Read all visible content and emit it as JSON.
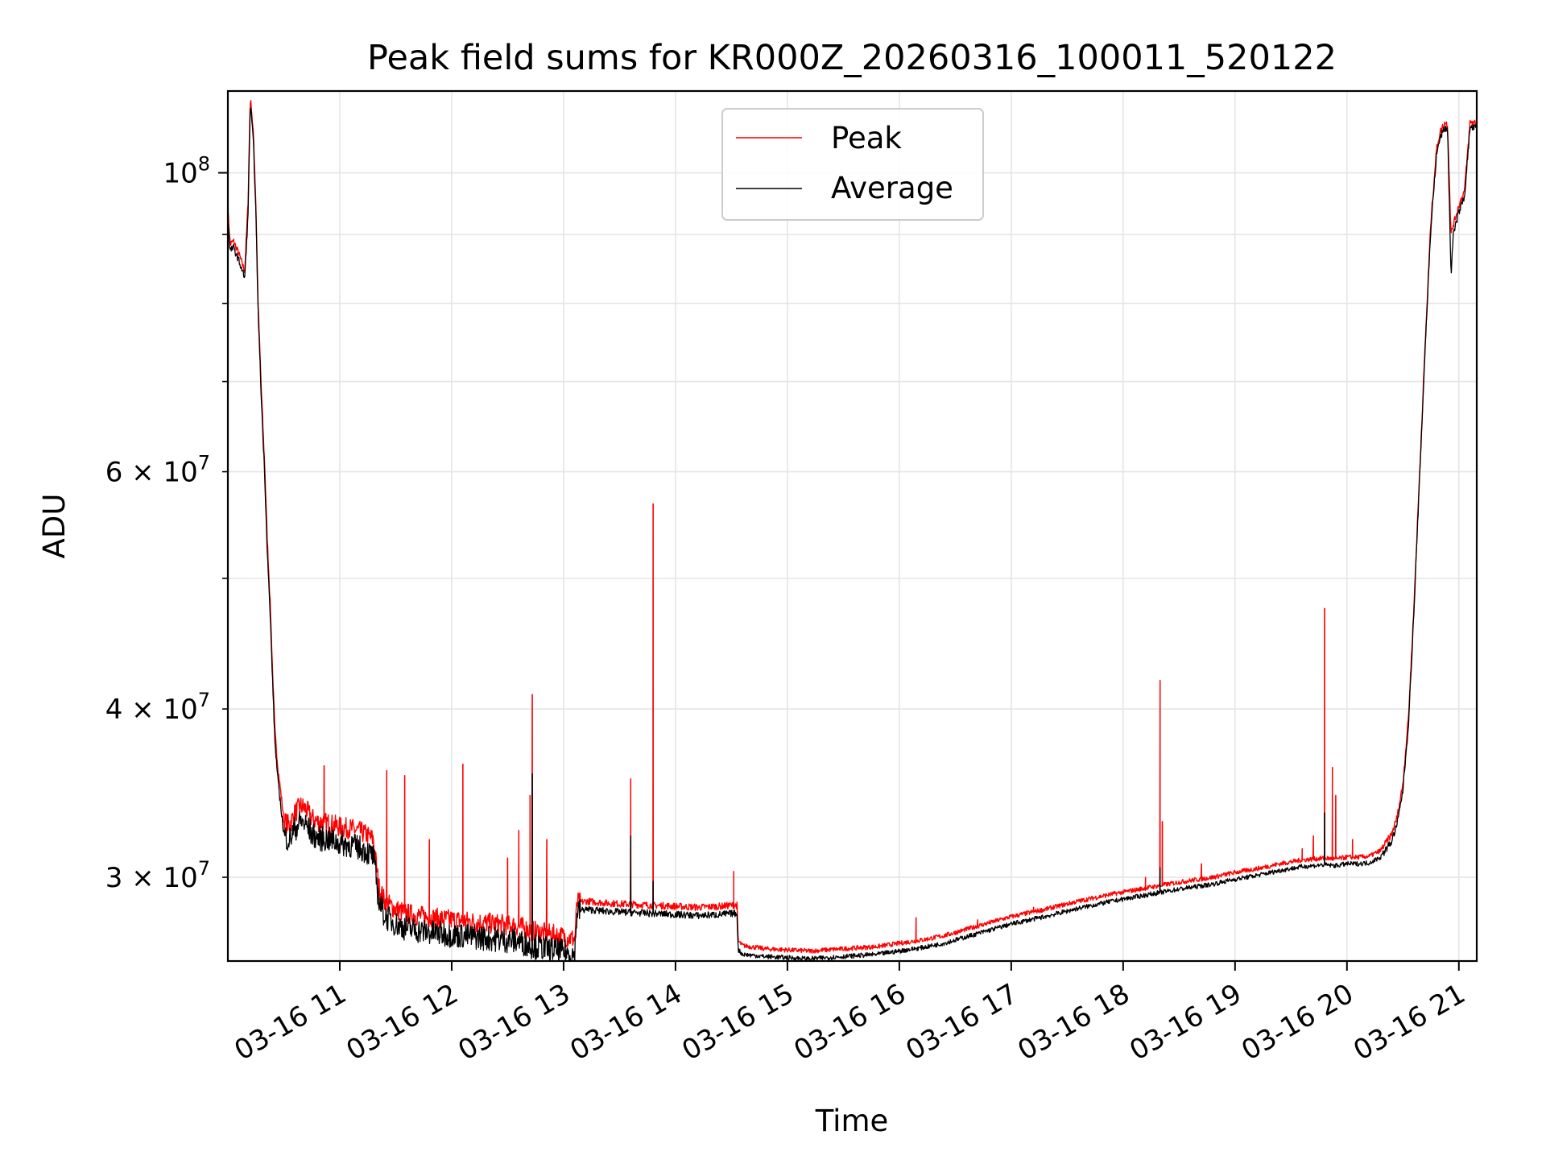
{
  "chart_data": {
    "type": "line",
    "title": "Peak field sums for KR000Z_20260316_100011_520122",
    "xlabel": "Time",
    "ylabel": "ADU",
    "yscale": "log",
    "xlim": [
      10.0,
      21.16
    ],
    "ylim": [
      26000000,
      115000000
    ],
    "grid": true,
    "legend_position": "top-center",
    "x_unit": "hours since 03-16 00:00",
    "x_ticks": [
      {
        "value": 11,
        "label": "03-16 11"
      },
      {
        "value": 12,
        "label": "03-16 12"
      },
      {
        "value": 13,
        "label": "03-16 13"
      },
      {
        "value": 14,
        "label": "03-16 14"
      },
      {
        "value": 15,
        "label": "03-16 15"
      },
      {
        "value": 16,
        "label": "03-16 16"
      },
      {
        "value": 17,
        "label": "03-16 17"
      },
      {
        "value": 18,
        "label": "03-16 18"
      },
      {
        "value": 19,
        "label": "03-16 19"
      },
      {
        "value": 20,
        "label": "03-16 20"
      },
      {
        "value": 21,
        "label": "03-16 21"
      }
    ],
    "y_ticks_major": [
      {
        "value": 100000000,
        "base": "10",
        "exp": "8"
      }
    ],
    "y_ticks_minor": [
      {
        "value": 30000000,
        "coef": "3",
        "base": "10",
        "exp": "7"
      },
      {
        "value": 40000000,
        "coef": "4",
        "base": "10",
        "exp": "7"
      },
      {
        "value": 50000000
      },
      {
        "value": 60000000,
        "coef": "6",
        "base": "10",
        "exp": "7"
      },
      {
        "value": 70000000
      },
      {
        "value": 80000000
      },
      {
        "value": 90000000
      }
    ],
    "series": [
      {
        "name": "Peak",
        "color": "#ff0000",
        "x": [
          10.0,
          10.02,
          10.05,
          10.1,
          10.15,
          10.18,
          10.2,
          10.21,
          10.23,
          10.25,
          10.27,
          10.3,
          10.33,
          10.35,
          10.38,
          10.4,
          10.42,
          10.45,
          10.48,
          10.5,
          10.55,
          10.6,
          10.65,
          10.7,
          10.75,
          10.8,
          10.9,
          11.0,
          11.1,
          11.2,
          11.3,
          11.35,
          11.4,
          11.5,
          11.6,
          11.8,
          12.0,
          12.2,
          12.4,
          12.6,
          12.7,
          12.8,
          12.9,
          13.0,
          13.1,
          13.12,
          13.2,
          13.4,
          13.6,
          13.8,
          14.0,
          14.2,
          14.4,
          14.5,
          14.55,
          14.56,
          14.6,
          14.8,
          15.0,
          15.2,
          15.5,
          15.8,
          16.0,
          16.2,
          16.4,
          16.6,
          16.8,
          17.0,
          17.3,
          17.6,
          17.9,
          18.2,
          18.5,
          18.8,
          19.0,
          19.2,
          19.4,
          19.6,
          19.7,
          19.8,
          19.9,
          20.0,
          20.1,
          20.2,
          20.3,
          20.4,
          20.45,
          20.5,
          20.55,
          20.6,
          20.65,
          20.7,
          20.75,
          20.8,
          20.83,
          20.85,
          20.88,
          20.9,
          20.93,
          20.95,
          21.0,
          21.05,
          21.1,
          21.16
        ],
        "values": [
          94000000,
          88500000,
          89000000,
          87000000,
          84500000,
          95000000,
          113500000,
          112000000,
          106000000,
          95000000,
          80000000,
          68500000,
          60500000,
          54000000,
          47500000,
          42500000,
          38500000,
          36000000,
          34300000,
          33000000,
          32800000,
          33500000,
          33900000,
          33700000,
          33200000,
          33000000,
          32900000,
          32700000,
          32600000,
          32400000,
          32000000,
          29500000,
          28800000,
          28400000,
          28200000,
          28000000,
          27900000,
          27800000,
          27700000,
          27600000,
          27400000,
          27300000,
          27200000,
          27100000,
          27000000,
          28700000,
          28800000,
          28700000,
          28650000,
          28600000,
          28550000,
          28500000,
          28550000,
          28600000,
          28600000,
          26900000,
          26700000,
          26550000,
          26500000,
          26450000,
          26550000,
          26650000,
          26800000,
          26950000,
          27150000,
          27450000,
          27750000,
          28050000,
          28400000,
          28800000,
          29150000,
          29450000,
          29750000,
          30000000,
          30250000,
          30450000,
          30700000,
          30900000,
          30950000,
          31000000,
          30950000,
          31050000,
          31050000,
          31100000,
          31400000,
          32300000,
          33300000,
          35200000,
          39500000,
          48000000,
          60000000,
          75000000,
          92000000,
          104000000,
          107000000,
          108000000,
          109000000,
          108500000,
          90000000,
          91500000,
          94500000,
          97000000,
          109000000,
          109000000
        ],
        "spikes": [
          {
            "x": 10.86,
            "value": 36300000
          },
          {
            "x": 11.42,
            "value": 36000000
          },
          {
            "x": 11.58,
            "value": 35700000
          },
          {
            "x": 11.8,
            "value": 32000000
          },
          {
            "x": 12.1,
            "value": 36400000
          },
          {
            "x": 12.5,
            "value": 31000000
          },
          {
            "x": 12.6,
            "value": 32500000
          },
          {
            "x": 12.7,
            "value": 34500000
          },
          {
            "x": 12.72,
            "value": 41000000
          },
          {
            "x": 12.85,
            "value": 32000000
          },
          {
            "x": 13.6,
            "value": 35500000
          },
          {
            "x": 13.8,
            "value": 56800000
          },
          {
            "x": 14.52,
            "value": 30300000
          },
          {
            "x": 16.15,
            "value": 28000000
          },
          {
            "x": 16.7,
            "value": 27900000
          },
          {
            "x": 17.2,
            "value": 28500000
          },
          {
            "x": 18.2,
            "value": 30000000
          },
          {
            "x": 18.33,
            "value": 42000000
          },
          {
            "x": 18.35,
            "value": 33000000
          },
          {
            "x": 18.7,
            "value": 30700000
          },
          {
            "x": 19.6,
            "value": 31500000
          },
          {
            "x": 19.7,
            "value": 32200000
          },
          {
            "x": 19.8,
            "value": 47500000
          },
          {
            "x": 19.87,
            "value": 36200000
          },
          {
            "x": 19.9,
            "value": 34500000
          },
          {
            "x": 20.05,
            "value": 32000000
          }
        ]
      },
      {
        "name": "Average",
        "color": "#000000",
        "x": [
          10.0,
          10.02,
          10.05,
          10.1,
          10.15,
          10.18,
          10.2,
          10.21,
          10.23,
          10.25,
          10.27,
          10.3,
          10.33,
          10.35,
          10.38,
          10.4,
          10.42,
          10.45,
          10.48,
          10.5,
          10.55,
          10.6,
          10.65,
          10.7,
          10.75,
          10.8,
          10.9,
          11.0,
          11.1,
          11.2,
          11.3,
          11.35,
          11.4,
          11.5,
          11.6,
          11.8,
          12.0,
          12.2,
          12.4,
          12.6,
          12.7,
          12.8,
          12.9,
          13.0,
          13.1,
          13.12,
          13.2,
          13.4,
          13.6,
          13.8,
          14.0,
          14.2,
          14.4,
          14.5,
          14.55,
          14.56,
          14.6,
          14.8,
          15.0,
          15.2,
          15.5,
          15.8,
          16.0,
          16.2,
          16.4,
          16.6,
          16.8,
          17.0,
          17.3,
          17.6,
          17.9,
          18.2,
          18.5,
          18.8,
          19.0,
          19.2,
          19.4,
          19.6,
          19.7,
          19.8,
          19.9,
          20.0,
          20.1,
          20.2,
          20.3,
          20.4,
          20.45,
          20.5,
          20.55,
          20.6,
          20.65,
          20.7,
          20.75,
          20.8,
          20.83,
          20.85,
          20.88,
          20.9,
          20.93,
          20.95,
          21.0,
          21.05,
          21.1,
          21.16
        ],
        "values": [
          93000000,
          87500000,
          88000000,
          86000000,
          83500000,
          93000000,
          112000000,
          110500000,
          104500000,
          93500000,
          79000000,
          67500000,
          59500000,
          53000000,
          46500000,
          41800000,
          37800000,
          35200000,
          33500000,
          32200000,
          32000000,
          32600000,
          33000000,
          32800000,
          32300000,
          32100000,
          32000000,
          31800000,
          31700000,
          31500000,
          31100000,
          28800000,
          28100000,
          27700000,
          27500000,
          27300000,
          27200000,
          27100000,
          27000000,
          26900000,
          26700000,
          26600000,
          26500000,
          26400000,
          26300000,
          28300000,
          28400000,
          28300000,
          28250000,
          28200000,
          28150000,
          28100000,
          28150000,
          28200000,
          28200000,
          26500000,
          26300000,
          26200000,
          26150000,
          26100000,
          26200000,
          26300000,
          26450000,
          26600000,
          26800000,
          27100000,
          27400000,
          27700000,
          28050000,
          28450000,
          28800000,
          29100000,
          29400000,
          29650000,
          29900000,
          30100000,
          30350000,
          30550000,
          30600000,
          30650000,
          30600000,
          30700000,
          30700000,
          30750000,
          31050000,
          31900000,
          32900000,
          34800000,
          39000000,
          47500000,
          59500000,
          74500000,
          91000000,
          103000000,
          106000000,
          107000000,
          108000000,
          107500000,
          84000000,
          90000000,
          93500000,
          96000000,
          108000000,
          108000000
        ],
        "spikes": [
          {
            "x": 12.72,
            "value": 35800000
          },
          {
            "x": 13.6,
            "value": 32200000
          },
          {
            "x": 13.8,
            "value": 29800000
          },
          {
            "x": 18.33,
            "value": 30500000
          },
          {
            "x": 19.8,
            "value": 33500000
          }
        ]
      }
    ]
  }
}
